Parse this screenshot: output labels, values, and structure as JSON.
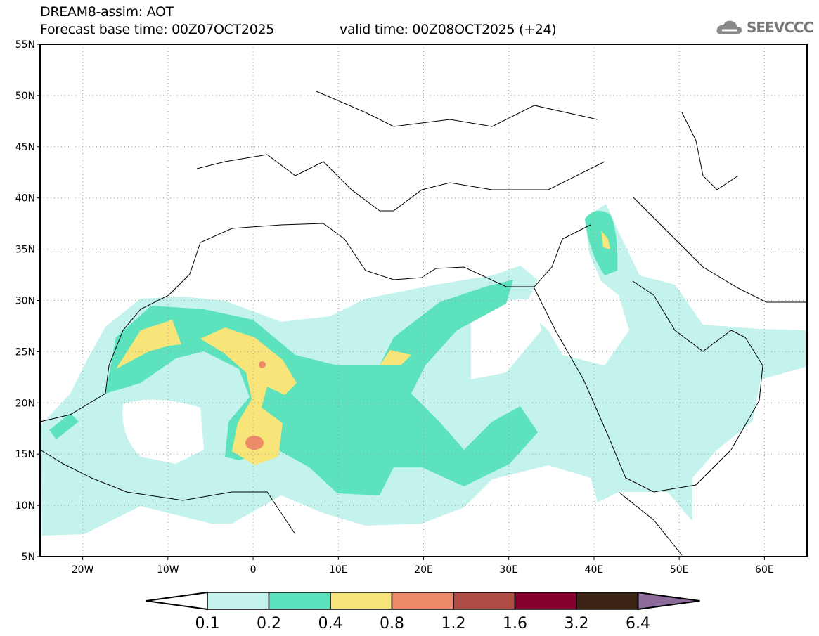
{
  "header": {
    "title": "DREAM8-assim: AOT",
    "base_time": "Forecast base time: 00Z07OCT2025",
    "valid_time": "valid time: 00Z08OCT2025 (+24)",
    "logo_text": "SEEVCCC"
  },
  "map": {
    "lat_labels": [
      "55N",
      "50N",
      "45N",
      "40N",
      "35N",
      "30N",
      "25N",
      "20N",
      "15N",
      "10N",
      "5N"
    ],
    "lon_labels": [
      "20W",
      "10W",
      "0",
      "10E",
      "20E",
      "30E",
      "40E",
      "50E",
      "60E"
    ],
    "lon_range": [
      -25,
      65
    ],
    "lat_range": [
      5,
      55
    ]
  },
  "colorbar": {
    "labels": [
      "0.1",
      "0.2",
      "0.4",
      "0.8",
      "1.2",
      "1.6",
      "3.2",
      "6.4"
    ],
    "colors": [
      "#c4f2ec",
      "#5ce3bd",
      "#f7e57a",
      "#ec8a6a",
      "#ad4c44",
      "#860030",
      "#3b2414",
      "#8c6a9c"
    ]
  }
}
